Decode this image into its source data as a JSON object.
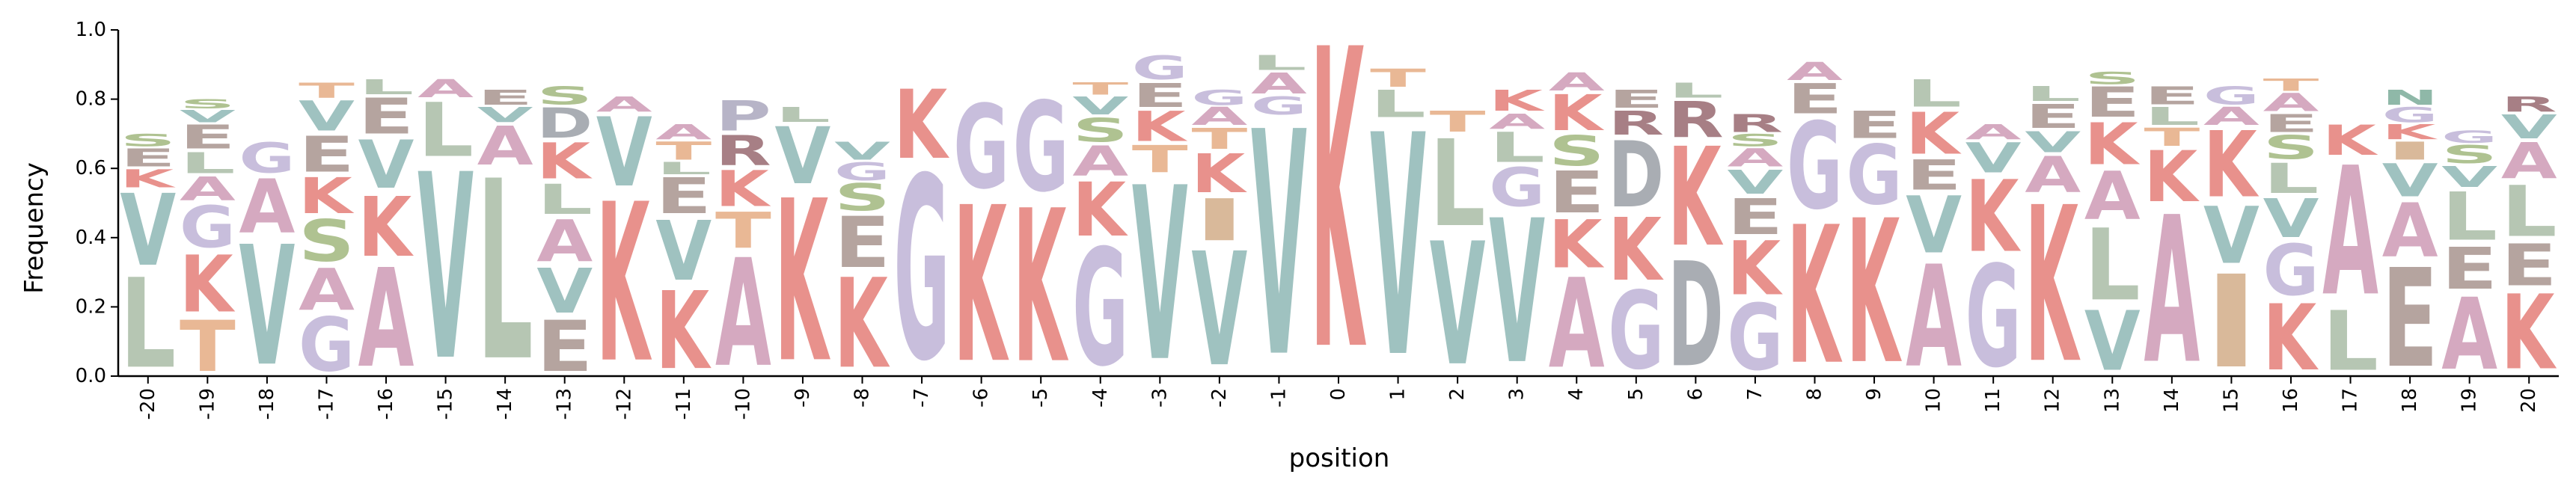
{
  "chart_data": {
    "type": "sequence-logo",
    "xlabel": "position",
    "ylabel": "Frequency",
    "ylim": [
      0,
      1
    ],
    "yticks": [
      0.0,
      0.2,
      0.4,
      0.6,
      0.8,
      1.0
    ],
    "ytick_labels": [
      "0.0",
      "0.2",
      "0.4",
      "0.6",
      "0.8",
      "1.0"
    ],
    "grid": false,
    "colors": {
      "K": "#e8918c",
      "V": "#9fc2c0",
      "A": "#d5a9c0",
      "G": "#c8bedc",
      "L": "#b6c6b3",
      "E": "#b5a49f",
      "S": "#afc291",
      "T": "#e9b895",
      "R": "#a77f85",
      "D": "#a9adb3",
      "I": "#d9b99a",
      "P": "#b7b4c7",
      "Y": "#9fb4c5",
      "N": "#8fb8a8"
    },
    "positions": [
      {
        "label": "-20",
        "stack": [
          [
            "L",
            0.3
          ],
          [
            "V",
            0.24
          ],
          [
            "K",
            0.06
          ],
          [
            "E",
            0.06
          ],
          [
            "S",
            0.04
          ]
        ]
      },
      {
        "label": "-19",
        "stack": [
          [
            "T",
            0.17
          ],
          [
            "K",
            0.19
          ],
          [
            "G",
            0.14
          ],
          [
            "A",
            0.08
          ],
          [
            "L",
            0.07
          ],
          [
            "E",
            0.08
          ],
          [
            "V",
            0.04
          ],
          [
            "S",
            0.03
          ]
        ]
      },
      {
        "label": "-18",
        "stack": [
          [
            "V",
            0.4
          ],
          [
            "A",
            0.18
          ],
          [
            "G",
            0.1
          ]
        ]
      },
      {
        "label": "-17",
        "stack": [
          [
            "G",
            0.18
          ],
          [
            "A",
            0.14
          ],
          [
            "S",
            0.14
          ],
          [
            "K",
            0.12
          ],
          [
            "E",
            0.12
          ],
          [
            "V",
            0.1
          ],
          [
            "T",
            0.05
          ]
        ]
      },
      {
        "label": "-16",
        "stack": [
          [
            "A",
            0.33
          ],
          [
            "K",
            0.2
          ],
          [
            "V",
            0.16
          ],
          [
            "E",
            0.12
          ],
          [
            "L",
            0.05
          ]
        ]
      },
      {
        "label": "-15",
        "stack": [
          [
            "V",
            0.62
          ],
          [
            "L",
            0.18
          ],
          [
            "A",
            0.06
          ]
        ]
      },
      {
        "label": "-14",
        "stack": [
          [
            "L",
            0.6
          ],
          [
            "A",
            0.13
          ],
          [
            "V",
            0.05
          ],
          [
            "E",
            0.05
          ]
        ]
      },
      {
        "label": "-13",
        "stack": [
          [
            "E",
            0.17
          ],
          [
            "V",
            0.15
          ],
          [
            "A",
            0.14
          ],
          [
            "L",
            0.1
          ],
          [
            "K",
            0.12
          ],
          [
            "D",
            0.1
          ],
          [
            "S",
            0.06
          ]
        ]
      },
      {
        "label": "-12",
        "stack": [
          [
            "K",
            0.53
          ],
          [
            "V",
            0.23
          ],
          [
            "A",
            0.05
          ]
        ]
      },
      {
        "label": "-11",
        "stack": [
          [
            "K",
            0.26
          ],
          [
            "V",
            0.2
          ],
          [
            "E",
            0.12
          ],
          [
            "L",
            0.04
          ],
          [
            "T",
            0.06
          ],
          [
            "A",
            0.05
          ]
        ]
      },
      {
        "label": "-10",
        "stack": [
          [
            "A",
            0.36
          ],
          [
            "T",
            0.12
          ],
          [
            "K",
            0.12
          ],
          [
            "R",
            0.1
          ],
          [
            "P",
            0.1
          ]
        ]
      },
      {
        "label": "-9",
        "stack": [
          [
            "K",
            0.54
          ],
          [
            "V",
            0.19
          ],
          [
            "L",
            0.05
          ]
        ]
      },
      {
        "label": "-8",
        "stack": [
          [
            "K",
            0.3
          ],
          [
            "E",
            0.17
          ],
          [
            "S",
            0.09
          ],
          [
            "G",
            0.06
          ],
          [
            "V",
            0.06
          ]
        ]
      },
      {
        "label": "-7",
        "stack": [
          [
            "G",
            0.61
          ],
          [
            "K",
            0.23
          ]
        ]
      },
      {
        "label": "-6",
        "stack": [
          [
            "K",
            0.52
          ],
          [
            "G",
            0.28
          ]
        ]
      },
      {
        "label": "-5",
        "stack": [
          [
            "K",
            0.51
          ],
          [
            "G",
            0.3
          ]
        ]
      },
      {
        "label": "-4",
        "stack": [
          [
            "G",
            0.39
          ],
          [
            "K",
            0.18
          ],
          [
            "A",
            0.1
          ],
          [
            "S",
            0.08
          ],
          [
            "V",
            0.06
          ],
          [
            "T",
            0.04
          ]
        ]
      },
      {
        "label": "-3",
        "stack": [
          [
            "V",
            0.58
          ],
          [
            "T",
            0.09
          ],
          [
            "K",
            0.1
          ],
          [
            "E",
            0.08
          ],
          [
            "G",
            0.08
          ]
        ]
      },
      {
        "label": "-2",
        "stack": [
          [
            "V",
            0.38
          ],
          [
            "I",
            0.14
          ],
          [
            "K",
            0.13
          ],
          [
            "T",
            0.07
          ],
          [
            "A",
            0.06
          ],
          [
            "G",
            0.05
          ]
        ]
      },
      {
        "label": "-1",
        "stack": [
          [
            "V",
            0.75
          ],
          [
            "G",
            0.06
          ],
          [
            "A",
            0.07
          ],
          [
            "L",
            0.05
          ]
        ]
      },
      {
        "label": "0",
        "stack": [
          [
            "K",
            1.0
          ]
        ]
      },
      {
        "label": "1",
        "stack": [
          [
            "V",
            0.74
          ],
          [
            "L",
            0.09
          ],
          [
            "T",
            0.06
          ]
        ]
      },
      {
        "label": "2",
        "stack": [
          [
            "V",
            0.41
          ],
          [
            "L",
            0.29
          ],
          [
            "T",
            0.07
          ]
        ]
      },
      {
        "label": "3",
        "stack": [
          [
            "V",
            0.48
          ],
          [
            "G",
            0.13
          ],
          [
            "L",
            0.1
          ],
          [
            "A",
            0.05
          ],
          [
            "K",
            0.07
          ]
        ]
      },
      {
        "label": "4",
        "stack": [
          [
            "A",
            0.3
          ],
          [
            "K",
            0.16
          ],
          [
            "E",
            0.14
          ],
          [
            "S",
            0.1
          ],
          [
            "K",
            0.12
          ],
          [
            "A",
            0.06
          ]
        ]
      },
      {
        "label": "5",
        "stack": [
          [
            "G",
            0.26
          ],
          [
            "K",
            0.21
          ],
          [
            "D",
            0.22
          ],
          [
            "R",
            0.08
          ],
          [
            "E",
            0.06
          ]
        ]
      },
      {
        "label": "6",
        "stack": [
          [
            "D",
            0.35
          ],
          [
            "K",
            0.33
          ],
          [
            "R",
            0.12
          ],
          [
            "L",
            0.05
          ]
        ]
      },
      {
        "label": "7",
        "stack": [
          [
            "G",
            0.22
          ],
          [
            "K",
            0.18
          ],
          [
            "E",
            0.12
          ],
          [
            "V",
            0.08
          ],
          [
            "A",
            0.06
          ],
          [
            "S",
            0.04
          ],
          [
            "R",
            0.06
          ]
        ]
      },
      {
        "label": "8",
        "stack": [
          [
            "K",
            0.46
          ],
          [
            "G",
            0.29
          ],
          [
            "E",
            0.1
          ],
          [
            "A",
            0.06
          ]
        ]
      },
      {
        "label": "9",
        "stack": [
          [
            "K",
            0.48
          ],
          [
            "G",
            0.2
          ],
          [
            "E",
            0.09
          ]
        ]
      },
      {
        "label": "10",
        "stack": [
          [
            "A",
            0.34
          ],
          [
            "V",
            0.19
          ],
          [
            "E",
            0.1
          ],
          [
            "K",
            0.14
          ],
          [
            "L",
            0.09
          ]
        ]
      },
      {
        "label": "11",
        "stack": [
          [
            "G",
            0.34
          ],
          [
            "K",
            0.24
          ],
          [
            "V",
            0.1
          ],
          [
            "A",
            0.05
          ]
        ]
      },
      {
        "label": "12",
        "stack": [
          [
            "K",
            0.52
          ],
          [
            "A",
            0.12
          ],
          [
            "V",
            0.07
          ],
          [
            "E",
            0.08
          ],
          [
            "L",
            0.05
          ]
        ]
      },
      {
        "label": "13",
        "stack": [
          [
            "V",
            0.2
          ],
          [
            "L",
            0.24
          ],
          [
            "A",
            0.16
          ],
          [
            "K",
            0.14
          ],
          [
            "E",
            0.1
          ],
          [
            "S",
            0.04
          ]
        ]
      },
      {
        "label": "14",
        "stack": [
          [
            "A",
            0.49
          ],
          [
            "K",
            0.17
          ],
          [
            "T",
            0.06
          ],
          [
            "L",
            0.06
          ],
          [
            "E",
            0.06
          ]
        ]
      },
      {
        "label": "15",
        "stack": [
          [
            "I",
            0.31
          ],
          [
            "V",
            0.19
          ],
          [
            "K",
            0.22
          ],
          [
            "A",
            0.06
          ],
          [
            "G",
            0.06
          ]
        ]
      },
      {
        "label": "16",
        "stack": [
          [
            "K",
            0.22
          ],
          [
            "G",
            0.17
          ],
          [
            "V",
            0.13
          ],
          [
            "L",
            0.1
          ],
          [
            "S",
            0.08
          ],
          [
            "E",
            0.06
          ],
          [
            "A",
            0.06
          ],
          [
            "T",
            0.04
          ]
        ]
      },
      {
        "label": "17",
        "stack": [
          [
            "L",
            0.2
          ],
          [
            "A",
            0.43
          ],
          [
            "K",
            0.1
          ]
        ]
      },
      {
        "label": "18",
        "stack": [
          [
            "E",
            0.33
          ],
          [
            "A",
            0.18
          ],
          [
            "V",
            0.11
          ],
          [
            "I",
            0.06
          ],
          [
            "K",
            0.05
          ],
          [
            "G",
            0.05
          ],
          [
            "N",
            0.05
          ]
        ]
      },
      {
        "label": "19",
        "stack": [
          [
            "A",
            0.24
          ],
          [
            "E",
            0.14
          ],
          [
            "L",
            0.16
          ],
          [
            "V",
            0.07
          ],
          [
            "S",
            0.06
          ],
          [
            "G",
            0.04
          ]
        ]
      },
      {
        "label": "20",
        "stack": [
          [
            "K",
            0.25
          ],
          [
            "E",
            0.14
          ],
          [
            "L",
            0.17
          ],
          [
            "A",
            0.12
          ],
          [
            "V",
            0.08
          ],
          [
            "R",
            0.05
          ]
        ]
      }
    ]
  }
}
